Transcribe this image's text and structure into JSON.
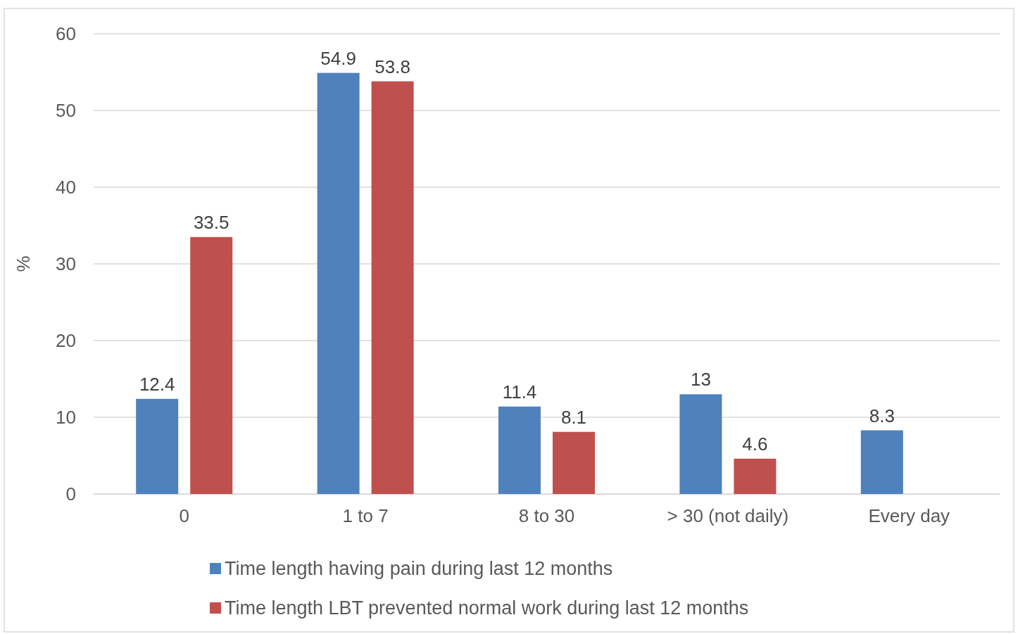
{
  "chart_data": {
    "type": "bar",
    "ylabel": "%",
    "categories": [
      "0",
      "1 to 7",
      "8 to 30",
      "> 30 (not daily)",
      "Every day"
    ],
    "series": [
      {
        "name": "Time length having pain during last 12 months",
        "color": "#4f81bd",
        "values": [
          12.4,
          54.9,
          11.4,
          13,
          8.3
        ]
      },
      {
        "name": "Time length LBT prevented normal work during last 12 months",
        "color": "#c0504d",
        "values": [
          33.5,
          53.8,
          8.1,
          4.6,
          null
        ]
      }
    ],
    "ylim": [
      0,
      60
    ],
    "yticks": [
      0,
      10,
      20,
      30,
      40,
      50,
      60
    ],
    "grid": "y",
    "legend": "bottom",
    "data_labels": true
  }
}
